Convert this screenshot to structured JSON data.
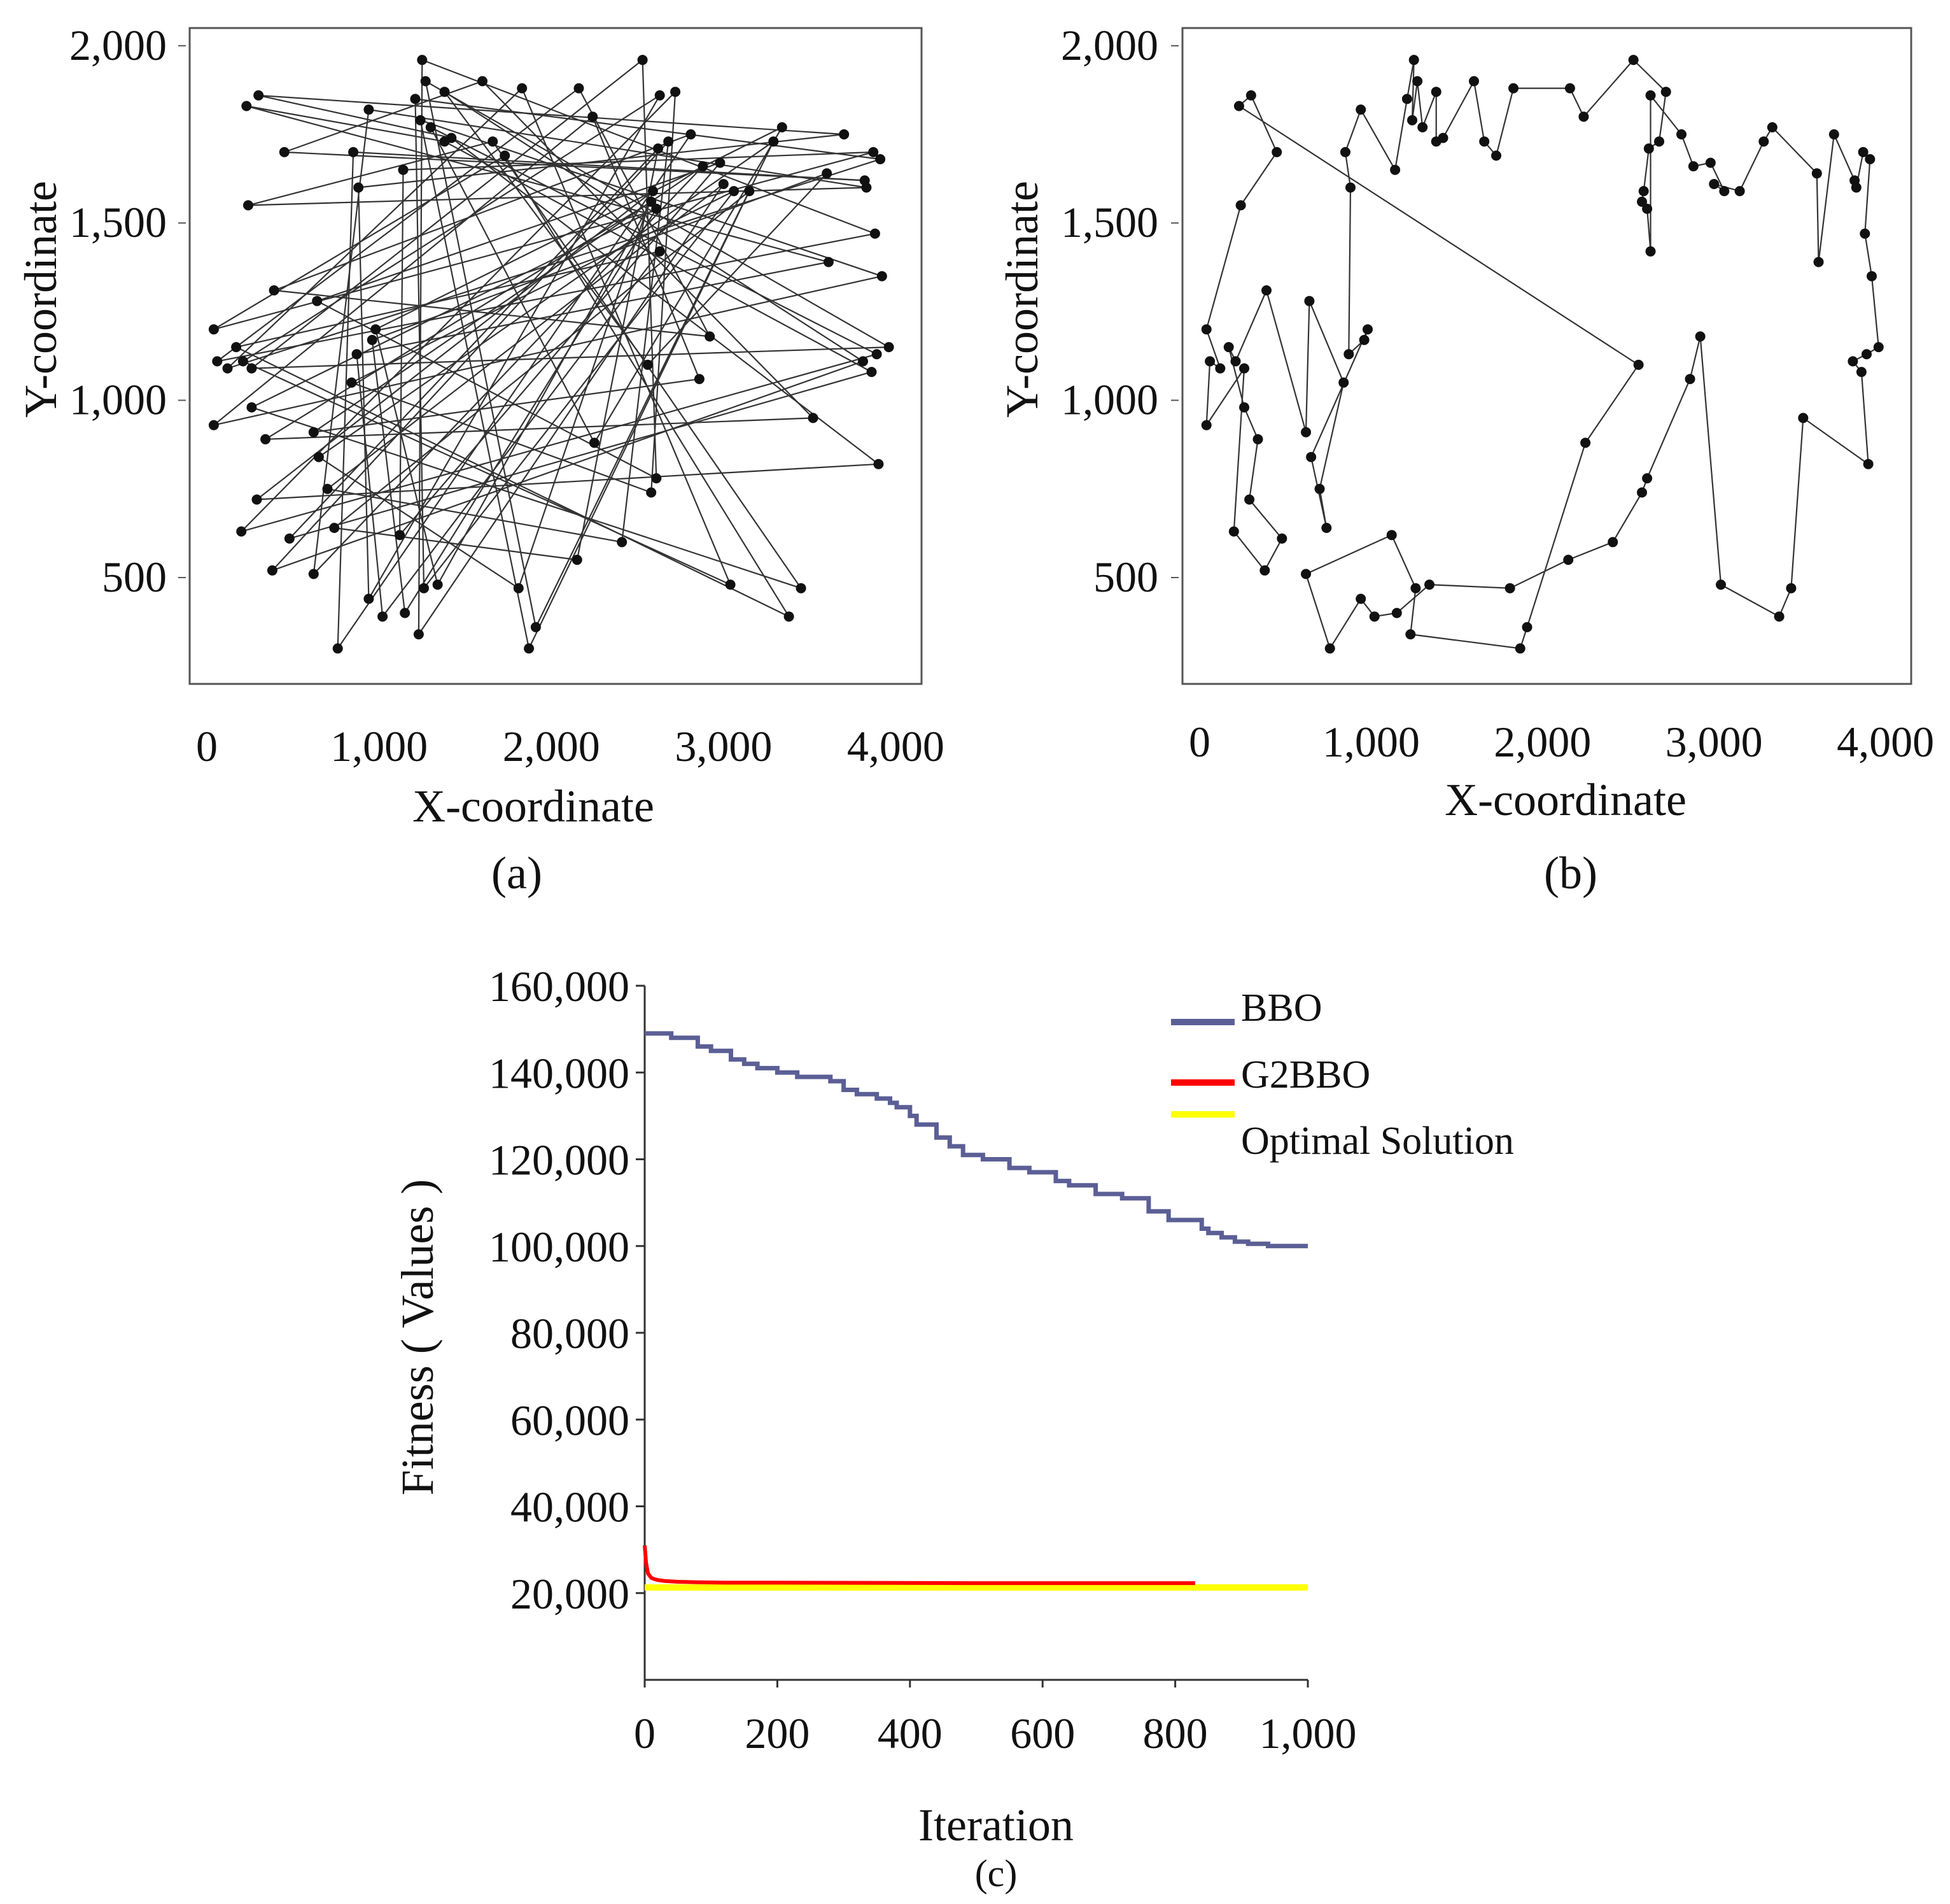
{
  "figure": {
    "panel_a_label": "(a)",
    "panel_b_label": "(b)",
    "panel_c_label": "(c)"
  },
  "colors": {
    "route": "#333333",
    "point": "#111111",
    "bbo": "#5b5f95",
    "g2bbo": "#ff0000",
    "optimal": "#ffff00"
  },
  "chart_data": [
    {
      "id": "a",
      "type": "scatter",
      "title": "",
      "xlabel": "X-coordinate",
      "ylabel": "Y-coordinate",
      "xlim": [
        -100,
        4150
      ],
      "ylim": [
        200,
        2050
      ],
      "xticks": [
        0,
        1000,
        2000,
        3000,
        4000
      ],
      "xtick_labels": [
        "0",
        "1,000",
        "2,000",
        "3,000",
        "4,000"
      ],
      "yticks": [
        500,
        1000,
        1500,
        2000
      ],
      "ytick_labels": [
        "500",
        "1,000",
        "1,500",
        "2,000"
      ],
      "x": [
        230,
        300,
        450,
        240,
        40,
        120,
        60,
        40,
        260,
        200,
        380,
        480,
        290,
        340,
        260,
        170,
        210,
        390,
        620,
        640,
        840,
        700,
        740,
        650,
        980,
        960,
        870,
        880,
        850,
        940,
        1140,
        1210,
        1250,
        1240,
        1270,
        1300,
        1380,
        1380,
        1420,
        1600,
        1660,
        1730,
        1830,
        2160,
        2240,
        2530,
        2720,
        2680,
        2620,
        2590,
        2580,
        2610,
        2630,
        2630,
        2810,
        2880,
        2980,
        3060,
        3000,
        3150,
        3290,
        3340,
        3600,
        3610,
        3700,
        3820,
        3830,
        3870,
        3910,
        3880,
        3920,
        3960,
        3890,
        3810,
        3860,
        3900,
        3520,
        3450,
        3380,
        3040,
        2920,
        2860,
        2610,
        2580,
        2410,
        2150,
        1810,
        1340,
        1150,
        1020,
        940,
        760,
        620,
        1120,
        1260,
        1230,
        1870,
        1910,
        2250,
        2560
      ],
      "y": [
        1830,
        1860,
        1700,
        1550,
        1200,
        1090,
        1110,
        930,
        1090,
        630,
        520,
        610,
        720,
        890,
        980,
        1150,
        1110,
        1310,
        910,
        1280,
        1050,
        750,
        640,
        840,
        1200,
        1170,
        1130,
        1600,
        1700,
        1820,
        1650,
        1850,
        1960,
        1790,
        1900,
        1770,
        1870,
        1730,
        1740,
        1900,
        1730,
        1690,
        1880,
        1880,
        1800,
        1960,
        1870,
        1730,
        1710,
        1590,
        1560,
        1540,
        1420,
        1860,
        1750,
        1660,
        1670,
        1590,
        1610,
        1590,
        1730,
        1770,
        1640,
        1390,
        1750,
        1620,
        1600,
        1700,
        1680,
        1470,
        1350,
        1150,
        1130,
        1110,
        1080,
        820,
        950,
        470,
        390,
        480,
        1180,
        1060,
        780,
        740,
        600,
        550,
        470,
        480,
        400,
        390,
        440,
        300,
        510,
        620,
        470,
        340,
        300,
        360,
        880,
        1100
      ]
    },
    {
      "id": "b",
      "type": "line",
      "title": "",
      "xlabel": "X-coordinate",
      "ylabel": "Y-coordinate",
      "xlim": [
        -100,
        4150
      ],
      "ylim": [
        200,
        2050
      ],
      "xticks": [
        0,
        1000,
        2000,
        3000,
        4000
      ],
      "xtick_labels": [
        "0",
        "1,000",
        "2,000",
        "3,000",
        "4,000"
      ],
      "yticks": [
        500,
        1000,
        1500,
        2000
      ],
      "ytick_labels": [
        "500",
        "1,000",
        "1,500",
        "2,000"
      ],
      "x": [
        230,
        300,
        450,
        240,
        40,
        120,
        60,
        40,
        260,
        200,
        380,
        480,
        290,
        340,
        260,
        170,
        210,
        390,
        620,
        640,
        840,
        700,
        740,
        650,
        980,
        960,
        870,
        880,
        850,
        940,
        1140,
        1210,
        1250,
        1240,
        1270,
        1300,
        1380,
        1380,
        1420,
        1600,
        1660,
        1730,
        1830,
        2160,
        2240,
        2530,
        2720,
        2680,
        2620,
        2590,
        2580,
        2610,
        2630,
        2630,
        2810,
        2880,
        2980,
        3060,
        3000,
        3150,
        3290,
        3340,
        3600,
        3610,
        3700,
        3820,
        3830,
        3870,
        3910,
        3880,
        3920,
        3960,
        3890,
        3810,
        3860,
        3900,
        3520,
        3450,
        3380,
        3040,
        2920,
        2860,
        2610,
        2580,
        2410,
        2150,
        1810,
        1340,
        1150,
        1020,
        940,
        760,
        620,
        1120,
        1260,
        1230,
        1870,
        1910,
        2250,
        2560
      ],
      "y": [
        1830,
        1860,
        1700,
        1550,
        1200,
        1090,
        1110,
        930,
        1090,
        630,
        520,
        610,
        720,
        890,
        980,
        1150,
        1110,
        1310,
        910,
        1280,
        1050,
        750,
        640,
        840,
        1200,
        1170,
        1130,
        1600,
        1700,
        1820,
        1650,
        1850,
        1960,
        1790,
        1900,
        1770,
        1870,
        1730,
        1740,
        1900,
        1730,
        1690,
        1880,
        1880,
        1800,
        1960,
        1870,
        1730,
        1710,
        1590,
        1560,
        1540,
        1420,
        1860,
        1750,
        1660,
        1670,
        1590,
        1610,
        1590,
        1730,
        1770,
        1640,
        1390,
        1750,
        1620,
        1600,
        1700,
        1680,
        1470,
        1350,
        1150,
        1130,
        1110,
        1080,
        820,
        950,
        470,
        390,
        480,
        1180,
        1060,
        780,
        740,
        600,
        550,
        470,
        480,
        400,
        390,
        440,
        300,
        510,
        620,
        470,
        340,
        300,
        360,
        880,
        1100
      ]
    },
    {
      "id": "c",
      "type": "line",
      "title": "",
      "xlabel": "Iteration",
      "ylabel": "Fitness ( Values )",
      "xlim": [
        0,
        1000
      ],
      "ylim": [
        0,
        160000
      ],
      "xticks": [
        0,
        200,
        400,
        600,
        800,
        1000
      ],
      "xtick_labels": [
        "0",
        "200",
        "400",
        "600",
        "800",
        "1,000"
      ],
      "yticks": [
        20000,
        40000,
        60000,
        80000,
        100000,
        120000,
        140000,
        160000
      ],
      "ytick_labels": [
        "20,000",
        "40,000",
        "60,000",
        "80,000",
        "100,000",
        "120,000",
        "140,000",
        "160,000"
      ],
      "legend": "top-right",
      "series": [
        {
          "name": "BBO",
          "x": [
            0,
            20,
            40,
            60,
            80,
            100,
            130,
            150,
            170,
            200,
            230,
            280,
            300,
            320,
            350,
            370,
            380,
            400,
            410,
            440,
            460,
            480,
            510,
            550,
            580,
            620,
            640,
            680,
            720,
            760,
            790,
            840,
            850,
            870,
            890,
            910,
            940,
            980,
            1000
          ],
          "y": [
            149000,
            149000,
            148000,
            148000,
            146000,
            145000,
            143000,
            142000,
            141000,
            140000,
            139000,
            138000,
            136000,
            135000,
            134000,
            133000,
            132000,
            130000,
            128000,
            125000,
            123000,
            121000,
            120000,
            118000,
            117000,
            115000,
            114000,
            112000,
            111000,
            108000,
            106000,
            104000,
            103000,
            102000,
            101000,
            100500,
            100000,
            100000,
            100000
          ]
        },
        {
          "name": "G2BBO",
          "x": [
            0,
            2,
            5,
            10,
            15,
            20,
            30,
            50,
            80,
            120,
            200,
            500,
            830
          ],
          "y": [
            31000,
            27000,
            24500,
            23500,
            23200,
            23000,
            22800,
            22600,
            22500,
            22400,
            22400,
            22300,
            22300
          ]
        },
        {
          "name": "Optimal Solution",
          "x": [
            0,
            1000
          ],
          "y": [
            21300,
            21300
          ]
        }
      ]
    }
  ]
}
